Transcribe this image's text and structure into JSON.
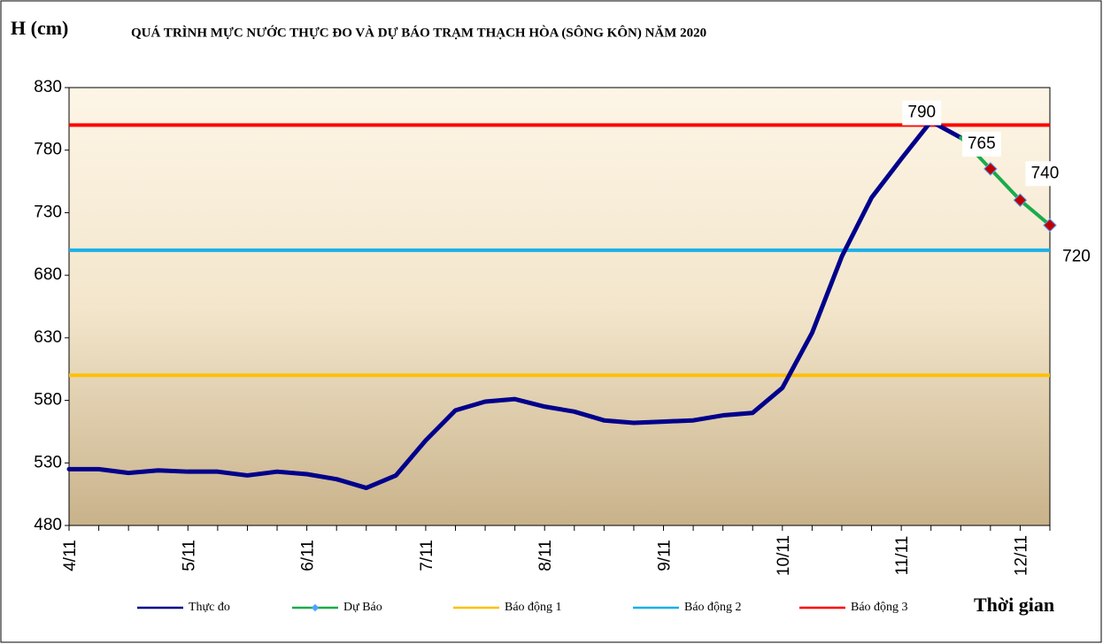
{
  "chart_data": {
    "type": "line",
    "title": "QUÁ TRÌNH MỰC NƯỚC THỰC ĐO VÀ DỰ BÁO TRẠM THẠCH HÒA (SÔNG KÔN) NĂM 2020",
    "y_label": "H (cm)",
    "x_label": "Thời gian",
    "categories": [
      "4/11",
      null,
      null,
      null,
      "5/11",
      null,
      null,
      null,
      "6/11",
      null,
      null,
      null,
      "7/11",
      null,
      null,
      null,
      "8/11",
      null,
      null,
      null,
      "9/11",
      null,
      null,
      null,
      "10/11",
      null,
      null,
      null,
      "11/11",
      null,
      null,
      null,
      "12/11",
      null
    ],
    "series": [
      {
        "name": "Thực đo",
        "color": "#00008b",
        "values": [
          525,
          525,
          522,
          524,
          523,
          523,
          520,
          523,
          521,
          517,
          510,
          520,
          548,
          572,
          579,
          581,
          575,
          571,
          564,
          562,
          563,
          564,
          568,
          570,
          590,
          634,
          695,
          742,
          773,
          803,
          790,
          null,
          null,
          null
        ]
      },
      {
        "name": "Dự Báo",
        "color": "#1aab4b",
        "marker_color": "#c00000",
        "values": [
          null,
          null,
          null,
          null,
          null,
          null,
          null,
          null,
          null,
          null,
          null,
          null,
          null,
          null,
          null,
          null,
          null,
          null,
          null,
          null,
          null,
          null,
          null,
          null,
          null,
          null,
          null,
          null,
          null,
          null,
          790,
          765,
          740,
          720
        ]
      }
    ],
    "levels": [
      {
        "name": "Báo động 1",
        "color": "#ffc000",
        "value": 600
      },
      {
        "name": "Báo động 2",
        "color": "#1ab0e8",
        "value": 700
      },
      {
        "name": "Báo động 3",
        "color": "#ff0000",
        "value": 800
      }
    ],
    "ylim": [
      480,
      830
    ],
    "yticks": [
      480,
      530,
      580,
      630,
      680,
      730,
      780,
      830
    ]
  }
}
